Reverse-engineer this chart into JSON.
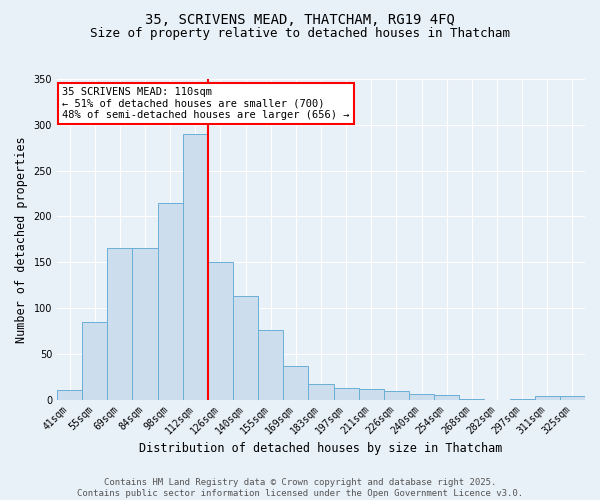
{
  "title_line1": "35, SCRIVENS MEAD, THATCHAM, RG19 4FQ",
  "title_line2": "Size of property relative to detached houses in Thatcham",
  "xlabel": "Distribution of detached houses by size in Thatcham",
  "ylabel": "Number of detached properties",
  "categories": [
    "41sqm",
    "55sqm",
    "69sqm",
    "84sqm",
    "98sqm",
    "112sqm",
    "126sqm",
    "140sqm",
    "155sqm",
    "169sqm",
    "183sqm",
    "197sqm",
    "211sqm",
    "226sqm",
    "240sqm",
    "254sqm",
    "268sqm",
    "282sqm",
    "297sqm",
    "311sqm",
    "325sqm"
  ],
  "values": [
    10,
    85,
    165,
    165,
    215,
    290,
    150,
    113,
    76,
    37,
    17,
    13,
    12,
    9,
    6,
    5,
    1,
    0,
    1,
    4,
    4
  ],
  "bar_color": "#ccdded",
  "bar_edge_color": "#6aaed6",
  "background_color": "#e8f0f8",
  "grid_color": "#ffffff",
  "vline_x": 5.5,
  "vline_color": "red",
  "ylim": [
    0,
    350
  ],
  "yticks": [
    0,
    50,
    100,
    150,
    200,
    250,
    300,
    350
  ],
  "annotation_title": "35 SCRIVENS MEAD: 110sqm",
  "annotation_line2": "← 51% of detached houses are smaller (700)",
  "annotation_line3": "48% of semi-detached houses are larger (656) →",
  "annotation_box_color": "red",
  "footer_line1": "Contains HM Land Registry data © Crown copyright and database right 2025.",
  "footer_line2": "Contains public sector information licensed under the Open Government Licence v3.0.",
  "title_fontsize": 10,
  "subtitle_fontsize": 9,
  "tick_fontsize": 7,
  "axis_label_fontsize": 8.5,
  "footer_fontsize": 6.5,
  "ann_fontsize": 7.5
}
